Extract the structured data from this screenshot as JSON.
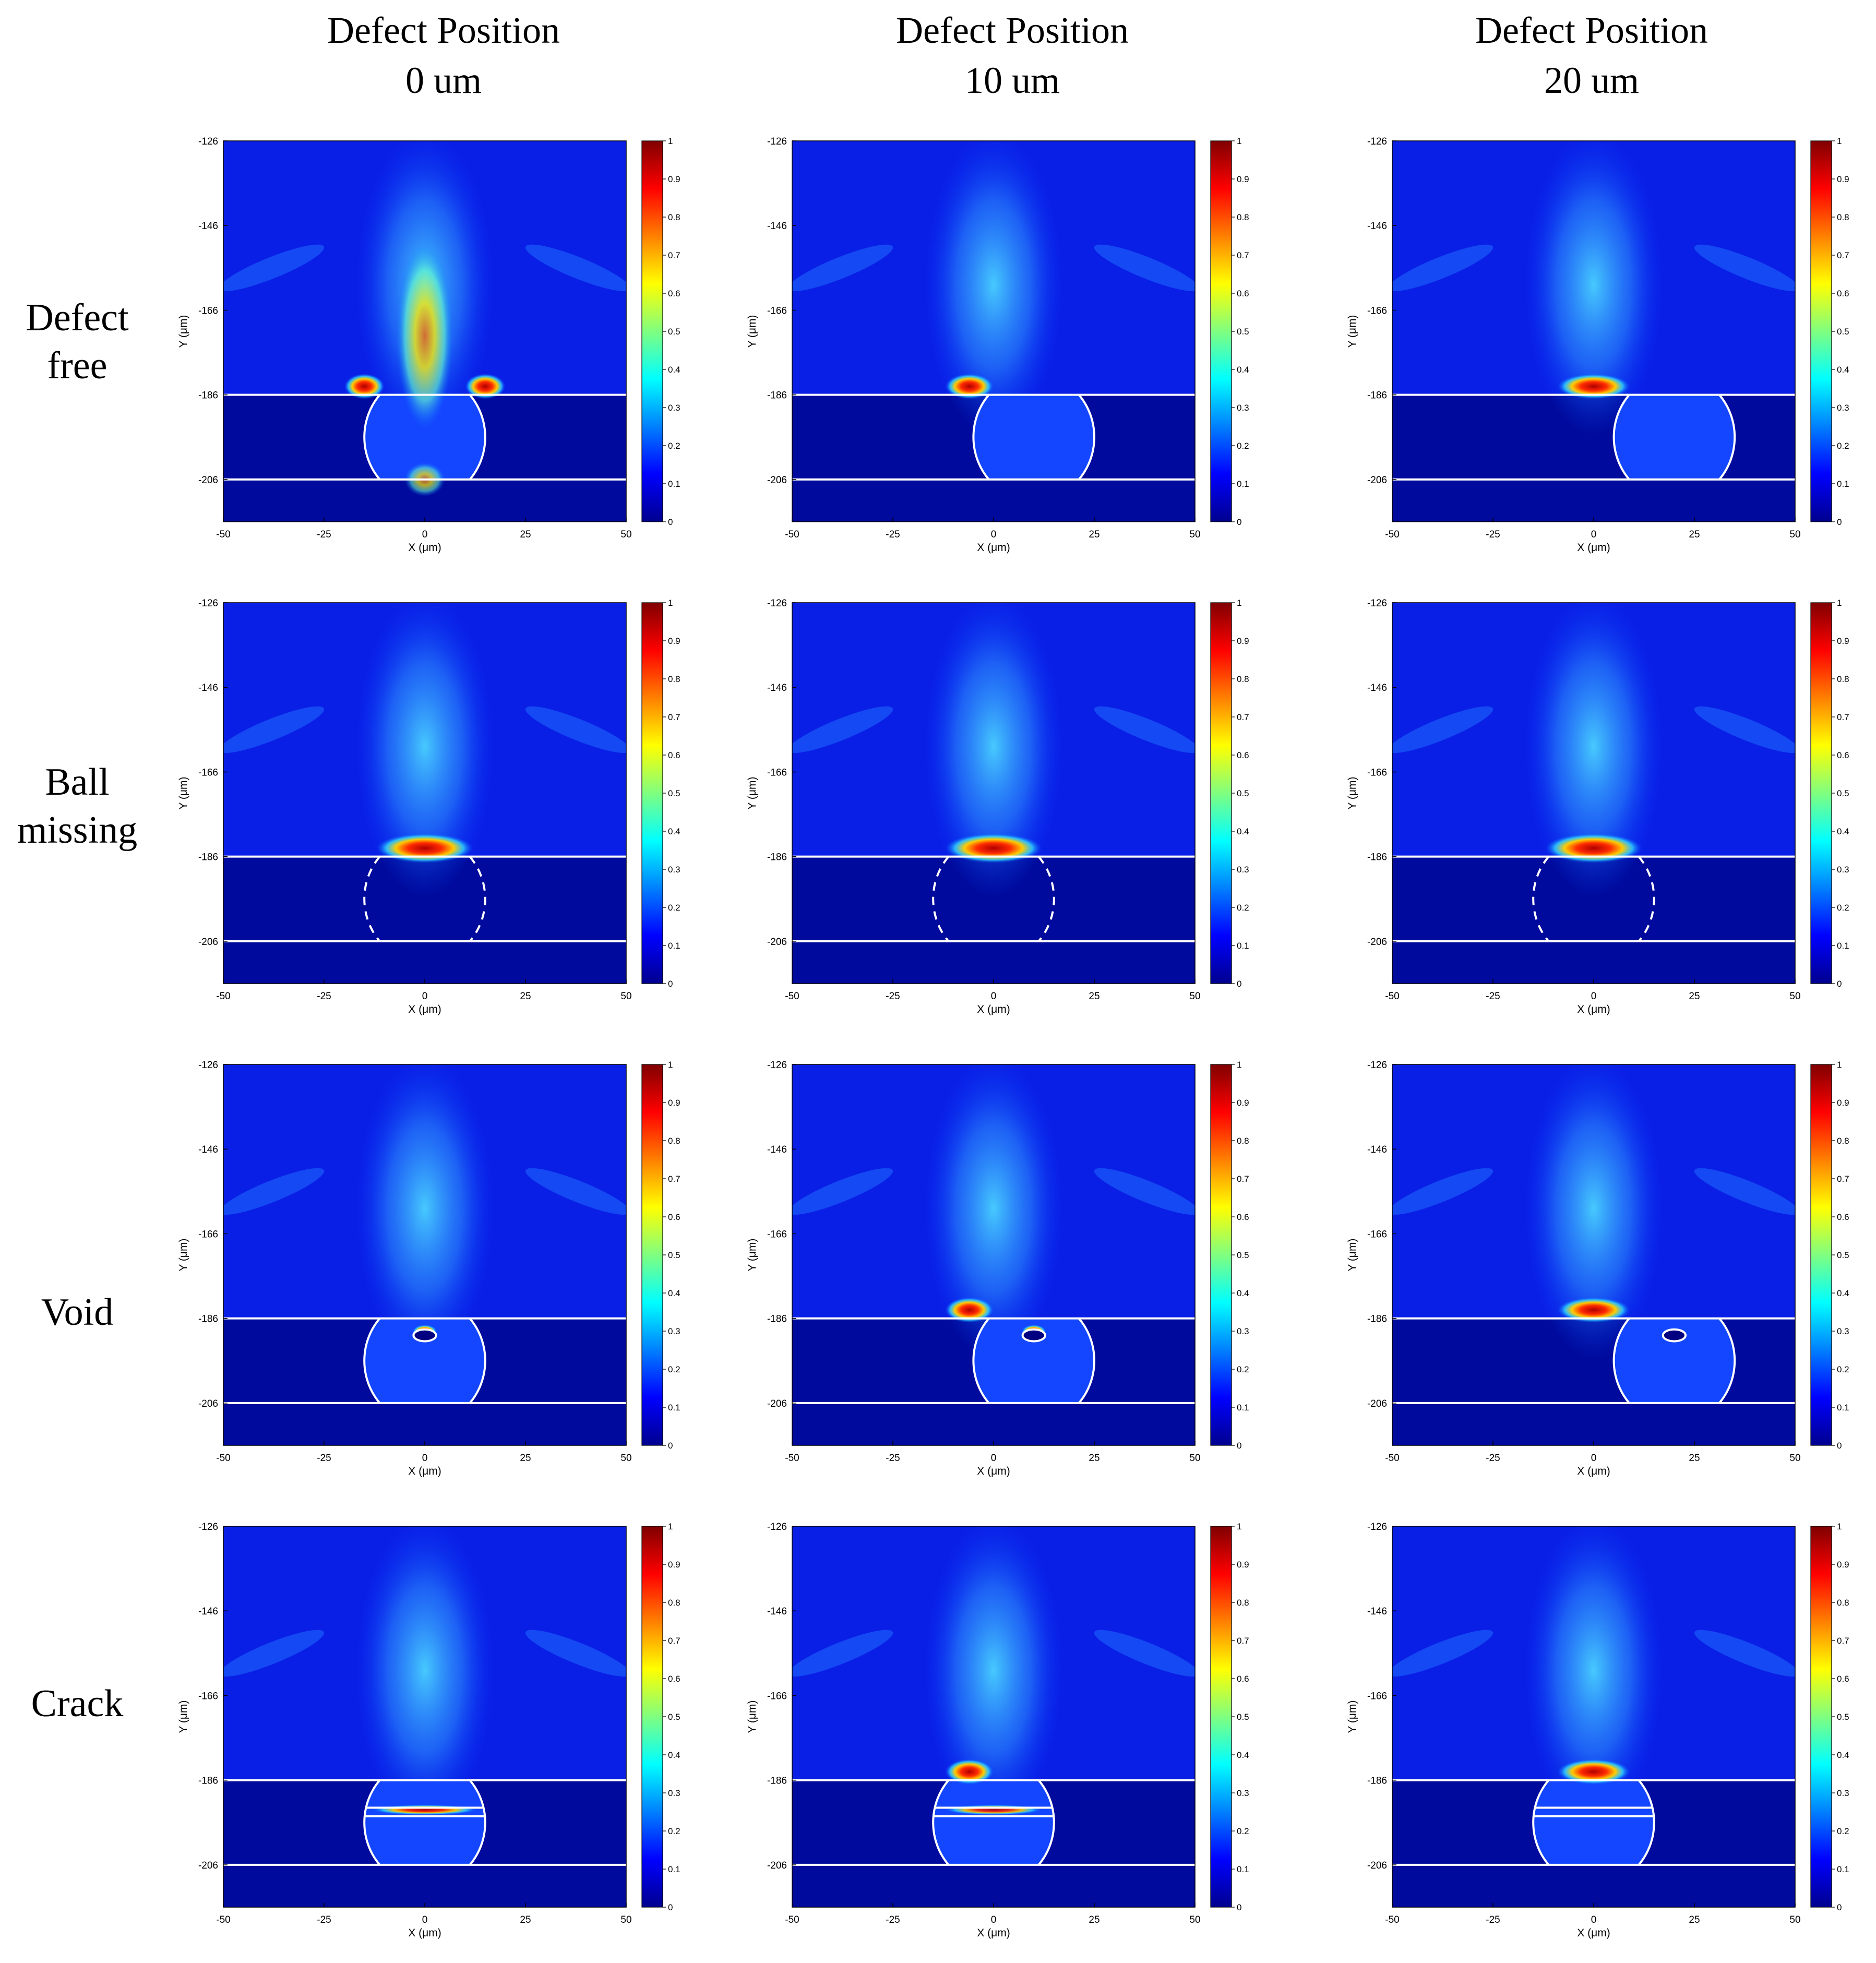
{
  "column_titles": [
    {
      "line1": "Defect Position",
      "line2": "0 um"
    },
    {
      "line1": "Defect Position",
      "line2": "10 um"
    },
    {
      "line1": "Defect Position",
      "line2": "20 um"
    }
  ],
  "row_titles": [
    {
      "lines": [
        "Defect",
        "free"
      ]
    },
    {
      "lines": [
        "Ball",
        "missing"
      ]
    },
    {
      "lines": [
        "Void"
      ]
    },
    {
      "lines": [
        "Crack"
      ]
    }
  ],
  "colormap": {
    "name": "jet",
    "stops": [
      "#00008f",
      "#0000ff",
      "#00ffff",
      "#ffff00",
      "#ff0000",
      "#800000"
    ]
  },
  "chart_data": {
    "type": "heatmap",
    "description_grid": "4 rows x 3 columns of normalized field-intensity maps",
    "xlabel": "X (μm)",
    "ylabel": "Y (μm)",
    "xlim": [
      -50,
      50
    ],
    "ylim": [
      -216,
      -126
    ],
    "x_ticks": [
      "-50",
      "-25",
      "0",
      "25",
      "50"
    ],
    "y_ticks": [
      "-126",
      "-146",
      "-166",
      "-186",
      "-206"
    ],
    "colorbar_ticks": [
      "0",
      "0.1",
      "0.2",
      "0.3",
      "0.4",
      "0.5",
      "0.6",
      "0.7",
      "0.8",
      "0.9",
      "1"
    ],
    "colorbar_range": [
      0,
      1
    ],
    "interface_lines_y": [
      -186,
      -206
    ],
    "ball_radius": 15,
    "panels": [
      {
        "row": "Defect free",
        "defect_position": 0,
        "ball_x": 0,
        "outline": "solid",
        "defect": "none",
        "hotspots": [
          {
            "x": 0,
            "y": -172,
            "rx": 7,
            "ry": 22,
            "v": 0.68
          },
          {
            "x": -15,
            "y": -184,
            "rx": 5,
            "ry": 3,
            "v": 0.95
          },
          {
            "x": 15,
            "y": -184,
            "rx": 5,
            "ry": 3,
            "v": 0.95
          },
          {
            "x": 0,
            "y": -206,
            "rx": 5,
            "ry": 4,
            "v": 0.6
          }
        ]
      },
      {
        "row": "Defect free",
        "defect_position": 10,
        "ball_x": 10,
        "outline": "solid",
        "defect": "none",
        "hotspots": [
          {
            "x": -6,
            "y": -184,
            "rx": 6,
            "ry": 3,
            "v": 0.95
          }
        ]
      },
      {
        "row": "Defect free",
        "defect_position": 20,
        "ball_x": 20,
        "outline": "solid",
        "defect": "none",
        "hotspots": [
          {
            "x": 0,
            "y": -184,
            "rx": 9,
            "ry": 3,
            "v": 0.95
          }
        ]
      },
      {
        "row": "Ball missing",
        "defect_position": 0,
        "ball_x": 0,
        "outline": "dashed",
        "defect": "missing",
        "hotspots": [
          {
            "x": 0,
            "y": -184,
            "rx": 12,
            "ry": 3.5,
            "v": 0.97
          }
        ]
      },
      {
        "row": "Ball missing",
        "defect_position": 10,
        "ball_x": 0,
        "outline": "dashed",
        "defect": "missing",
        "hotspots": [
          {
            "x": 0,
            "y": -184,
            "rx": 12,
            "ry": 3.5,
            "v": 0.97
          }
        ]
      },
      {
        "row": "Ball missing",
        "defect_position": 20,
        "ball_x": 0,
        "outline": "dashed",
        "defect": "missing",
        "hotspots": [
          {
            "x": 0,
            "y": -184,
            "rx": 12,
            "ry": 3.5,
            "v": 0.97
          }
        ]
      },
      {
        "row": "Void",
        "defect_position": 0,
        "ball_x": 0,
        "outline": "solid",
        "defect": "void",
        "void_x": 0,
        "hotspots": [
          {
            "x": 0,
            "y": -189,
            "rx": 3,
            "ry": 1.5,
            "v": 0.9
          }
        ]
      },
      {
        "row": "Void",
        "defect_position": 10,
        "ball_x": 10,
        "outline": "solid",
        "defect": "void",
        "void_x": 10,
        "hotspots": [
          {
            "x": -6,
            "y": -184,
            "rx": 6,
            "ry": 3,
            "v": 0.95
          },
          {
            "x": 10,
            "y": -189,
            "rx": 3,
            "ry": 1.5,
            "v": 0.9
          }
        ]
      },
      {
        "row": "Void",
        "defect_position": 20,
        "ball_x": 20,
        "outline": "solid",
        "defect": "void",
        "void_x": 20,
        "hotspots": [
          {
            "x": 0,
            "y": -184,
            "rx": 9,
            "ry": 3,
            "v": 0.95
          }
        ]
      },
      {
        "row": "Crack",
        "defect_position": 0,
        "ball_x": 0,
        "outline": "solid",
        "defect": "crack",
        "hotspots": [
          {
            "x": 0,
            "y": -193,
            "rx": 13,
            "ry": 1.2,
            "v": 0.85
          }
        ]
      },
      {
        "row": "Crack",
        "defect_position": 10,
        "ball_x": 0,
        "outline": "solid",
        "defect": "crack",
        "hotspots": [
          {
            "x": -6,
            "y": -184,
            "rx": 6,
            "ry": 3,
            "v": 0.95
          },
          {
            "x": 0,
            "y": -193,
            "rx": 12,
            "ry": 1.2,
            "v": 0.8
          }
        ]
      },
      {
        "row": "Crack",
        "defect_position": 20,
        "ball_x": 0,
        "outline": "solid",
        "defect": "crack",
        "hotspots": [
          {
            "x": 0,
            "y": -184,
            "rx": 9,
            "ry": 3,
            "v": 0.95
          }
        ]
      }
    ]
  }
}
